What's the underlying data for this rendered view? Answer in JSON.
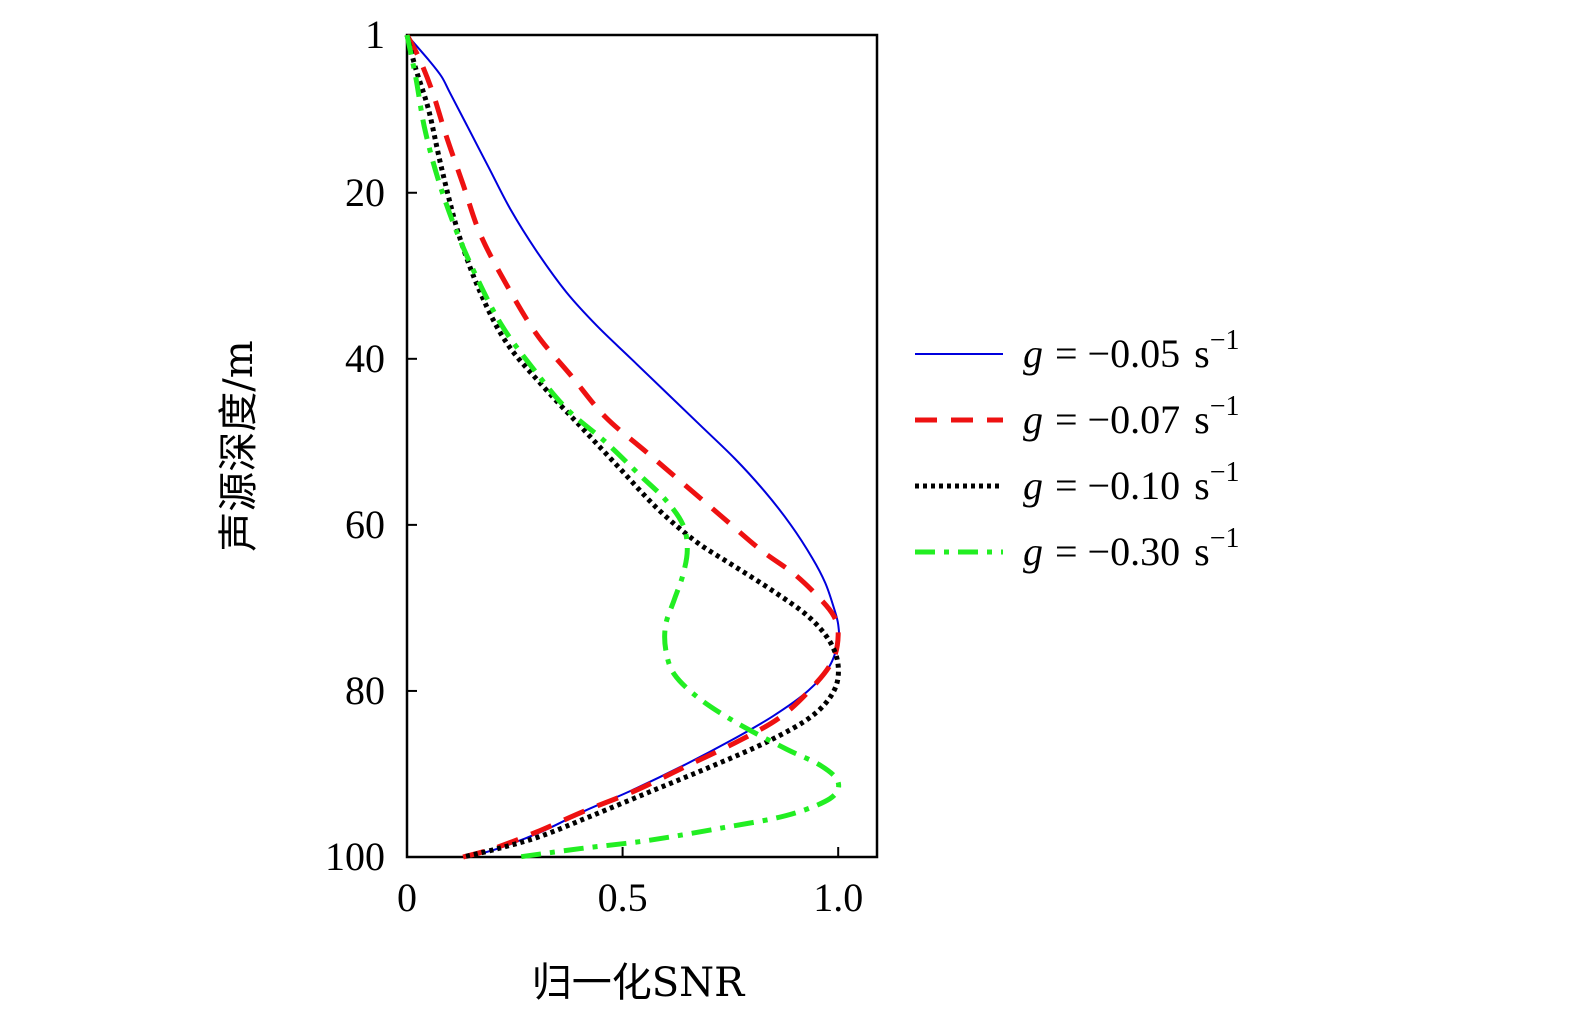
{
  "chart_data": {
    "type": "line",
    "title": "",
    "xlabel": "归一化SNR",
    "ylabel": "声源深度/m",
    "xlim": [
      0,
      1.09
    ],
    "ylim": [
      1,
      100
    ],
    "y_inverted": true,
    "xticks": [
      0,
      0.5,
      1.0
    ],
    "xtick_labels": [
      "0",
      "0.5",
      "1.0"
    ],
    "yticks": [
      1,
      20,
      40,
      60,
      80,
      100
    ],
    "ytick_labels": [
      "1",
      "20",
      "40",
      "60",
      "80",
      "100"
    ],
    "grid": false,
    "legend_position": "right",
    "series": [
      {
        "name": "g = −0.05 s−1",
        "name_var": "g",
        "name_eq": "= −0.05",
        "name_unit": "s",
        "name_exp": "−1",
        "color": "#0000dd",
        "dash": "solid",
        "x": [
          0.0,
          0.05,
          0.08,
          0.1,
          0.14,
          0.19,
          0.24,
          0.3,
          0.37,
          0.44,
          0.52,
          0.6,
          0.68,
          0.76,
          0.83,
          0.89,
          0.94,
          0.97,
          0.99,
          1.0,
          1.0,
          0.98,
          0.93,
          0.85,
          0.75,
          0.64,
          0.52,
          0.41,
          0.31,
          0.21,
          0.14
        ],
        "y": [
          1,
          4,
          6,
          8,
          12,
          17,
          22,
          27,
          32,
          36,
          40,
          44,
          48,
          52,
          56,
          60,
          64,
          67,
          70,
          72,
          74,
          77,
          80,
          83,
          86,
          89,
          92,
          94.5,
          97,
          99,
          100
        ]
      },
      {
        "name": "g = −0.07 s−1",
        "name_var": "g",
        "name_eq": "= −0.07",
        "name_unit": "s",
        "name_exp": "−1",
        "color": "#ee1111",
        "dash": "dashed",
        "x": [
          0.0,
          0.03,
          0.06,
          0.09,
          0.13,
          0.17,
          0.23,
          0.3,
          0.38,
          0.46,
          0.55,
          0.64,
          0.73,
          0.82,
          0.9,
          0.96,
          0.99,
          1.0,
          0.99,
          0.95,
          0.87,
          0.77,
          0.65,
          0.53,
          0.41,
          0.3,
          0.2,
          0.13
        ],
        "y": [
          1,
          4,
          8,
          13,
          19,
          25,
          31,
          37,
          42,
          47,
          51,
          55,
          59,
          63,
          66,
          69,
          71,
          73,
          76,
          79,
          83,
          86,
          89,
          92,
          94.5,
          97,
          99,
          100
        ]
      },
      {
        "name": "g = −0.10 s−1",
        "name_var": "g",
        "name_eq": "= −0.10",
        "name_unit": "s",
        "name_exp": "−1",
        "color": "#000000",
        "dash": "dotted",
        "x": [
          0.0,
          0.02,
          0.05,
          0.08,
          0.12,
          0.17,
          0.23,
          0.31,
          0.4,
          0.49,
          0.58,
          0.67,
          0.76,
          0.85,
          0.93,
          0.98,
          1.0,
          0.99,
          0.94,
          0.84,
          0.71,
          0.57,
          0.43,
          0.31,
          0.21,
          0.13
        ],
        "y": [
          1,
          5,
          10,
          17,
          25,
          32,
          38,
          43,
          48,
          53,
          58,
          62,
          65,
          68,
          71,
          74,
          77,
          80,
          83,
          86,
          89,
          92,
          95,
          97.5,
          99,
          100
        ]
      },
      {
        "name": "g = −0.30 s−1",
        "name_var": "g",
        "name_eq": "= −0.30",
        "name_unit": "s",
        "name_exp": "−1",
        "color": "#22ee22",
        "dash": "dashdot",
        "x": [
          0.0,
          0.02,
          0.04,
          0.07,
          0.11,
          0.16,
          0.22,
          0.29,
          0.37,
          0.46,
          0.54,
          0.6,
          0.64,
          0.65,
          0.64,
          0.62,
          0.6,
          0.6,
          0.62,
          0.68,
          0.77,
          0.88,
          0.96,
          1.0,
          0.98,
          0.88,
          0.73,
          0.56,
          0.4,
          0.26
        ],
        "y": [
          1,
          6,
          12,
          18,
          24,
          30,
          36,
          41,
          46,
          50,
          54,
          57,
          60,
          63,
          66,
          69,
          72,
          75,
          78,
          81,
          84,
          87,
          89,
          91,
          93,
          95,
          96.5,
          98,
          99,
          100
        ]
      }
    ]
  }
}
